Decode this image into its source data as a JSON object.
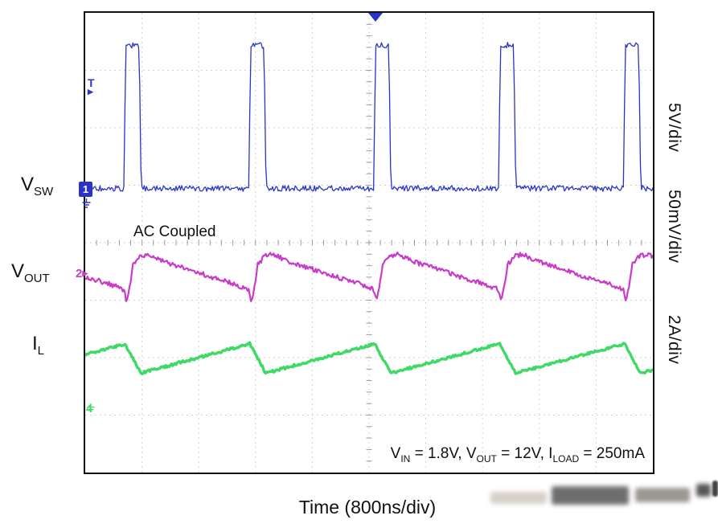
{
  "scope": {
    "trigger_marker": "T",
    "channels": [
      {
        "id": "1",
        "label_base": "V",
        "label_sub": "SW",
        "color": "#2a35c8"
      },
      {
        "id": "2",
        "label_base": "V",
        "label_sub": "OUT",
        "color": "#c83cc8"
      },
      {
        "id": "4",
        "label_base": "I",
        "label_sub": "L",
        "color": "#3fd966"
      }
    ],
    "right_labels": [
      "5V/div",
      "50mV/div",
      "2A/div"
    ],
    "ac_coupled_label": "AC Coupled",
    "conditions": {
      "p1": "V",
      "s1": "IN",
      "p2": " = 1.8V, V",
      "s2": "OUT",
      "p3": " = 12V, I",
      "s3": "LOAD",
      "p4": " = 250mA"
    },
    "xaxis_label": "Time (800ns/div)"
  },
  "chart_data": {
    "type": "line",
    "xlabel": "Time (800ns/div)",
    "time_per_div": "800ns",
    "x_divisions": 10,
    "y_divisions": 8,
    "annotations": [
      "AC Coupled",
      "VIN = 1.8V, VOUT = 12V, ILOAD = 250mA"
    ],
    "legend_position": "left-labels",
    "grid": "dotted-with-center-ticks",
    "note": "pattern points are [time_in_divisions, level_in_divisions_from_top]; waveform repeats every period_div",
    "series": [
      {
        "name": "V_SW",
        "units_per_div": "5V/div",
        "color": "#2a35c8",
        "stroke_width": 1.3,
        "noise_div": 0.05,
        "phase_div": 0.68,
        "period_div": 2.2,
        "pattern": [
          [
            0,
            3.06
          ],
          [
            0.035,
            0.6
          ],
          [
            0.09,
            0.56
          ],
          [
            0.27,
            0.57
          ],
          [
            0.305,
            3.05
          ],
          [
            2.2,
            3.06
          ]
        ]
      },
      {
        "name": "V_OUT (AC Coupled ripple)",
        "units_per_div": "50mV/div",
        "color": "#c83cc8",
        "stroke_width": 2.2,
        "noise_div": 0.04,
        "phase_div": 0.68,
        "period_div": 2.2,
        "pattern": [
          [
            0,
            4.82
          ],
          [
            0.05,
            5.02
          ],
          [
            0.11,
            4.72
          ],
          [
            0.16,
            4.38
          ],
          [
            0.28,
            4.24
          ],
          [
            0.42,
            4.2
          ],
          [
            0.7,
            4.33
          ],
          [
            1.1,
            4.45
          ],
          [
            1.55,
            4.6
          ],
          [
            1.95,
            4.72
          ],
          [
            2.14,
            4.79
          ],
          [
            2.2,
            4.82
          ]
        ]
      },
      {
        "name": "I_L",
        "units_per_div": "2A/div",
        "color": "#3fd966",
        "stroke_width": 3.4,
        "noise_div": 0.022,
        "phase_div": 0.7,
        "period_div": 2.2,
        "pattern": [
          [
            0,
            5.76
          ],
          [
            0.28,
            6.27
          ],
          [
            2.2,
            5.76
          ]
        ]
      }
    ],
    "trigger": {
      "x_div": 5.1,
      "level_div": 1.35,
      "source_channel": "1"
    }
  }
}
